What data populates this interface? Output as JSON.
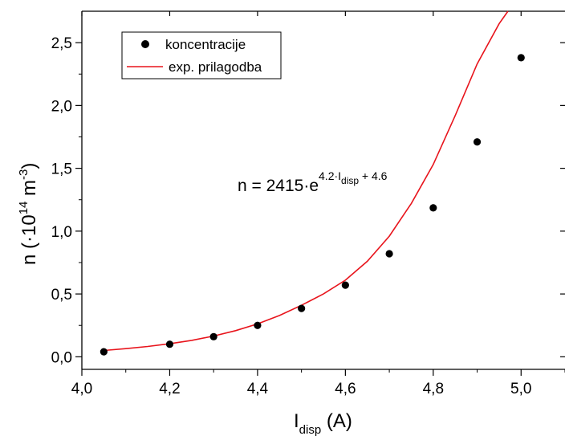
{
  "chart_data": {
    "type": "scatter",
    "xlabel": {
      "main": "I",
      "sub": "disp",
      "rest": " (A)"
    },
    "ylabel": {
      "prefix": "n (·10",
      "sup": "14",
      "mid": " m",
      "sup2": "-3",
      "suffix": ")"
    },
    "xlim": [
      4.0,
      5.1
    ],
    "ylim": [
      -0.1,
      2.75
    ],
    "xticks": [
      4.0,
      4.2,
      4.4,
      4.6,
      4.8,
      5.0
    ],
    "xtick_labels": [
      "4,0",
      "4,2",
      "4,4",
      "4,6",
      "4,8",
      "5,0"
    ],
    "yticks": [
      0.0,
      0.5,
      1.0,
      1.5,
      2.0,
      2.5
    ],
    "ytick_labels": [
      "0,0",
      "0,5",
      "1,0",
      "1,5",
      "2,0",
      "2,5"
    ],
    "series": [
      {
        "name": "koncentracije",
        "kind": "scatter",
        "color": "#000000",
        "x": [
          4.05,
          4.2,
          4.3,
          4.4,
          4.5,
          4.6,
          4.7,
          4.8,
          4.9,
          5.0
        ],
        "y": [
          0.04,
          0.1,
          0.16,
          0.25,
          0.385,
          0.57,
          0.82,
          1.185,
          1.71,
          2.38
        ]
      },
      {
        "name": "exp. prilagodba",
        "kind": "line",
        "color": "#e8141c",
        "x": [
          4.05,
          4.1,
          4.15,
          4.2,
          4.25,
          4.3,
          4.35,
          4.4,
          4.45,
          4.5,
          4.55,
          4.6,
          4.65,
          4.7,
          4.75,
          4.8,
          4.85,
          4.9,
          4.95,
          4.97
        ],
        "y": [
          0.05,
          0.065,
          0.082,
          0.104,
          0.131,
          0.165,
          0.208,
          0.262,
          0.329,
          0.41,
          0.5,
          0.61,
          0.76,
          0.96,
          1.22,
          1.53,
          1.92,
          2.33,
          2.65,
          2.75
        ]
      }
    ],
    "legend_position": "top-left",
    "annotation": {
      "text": "n = 2415·e",
      "exp_a": "4.2·I",
      "exp_sub": "disp",
      "exp_b": " + 4.6"
    }
  }
}
